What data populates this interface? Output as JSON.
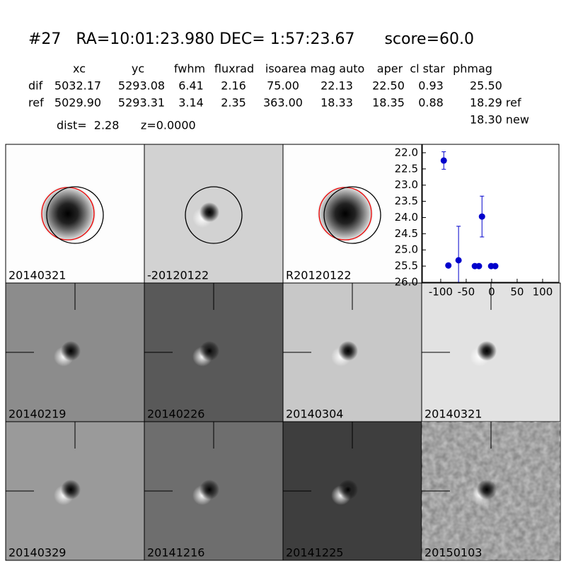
{
  "header": {
    "title": "#27   RA=10:01:23.980 DEC= 1:57:23.67      score=60.0",
    "dist": "dist=  2.28      z=0.0000"
  },
  "table": {
    "columns": [
      "xc",
      "yc",
      "fwhm",
      "fluxrad",
      "isoarea",
      "mag auto",
      "aper",
      "cl star",
      "phmag"
    ],
    "rows": [
      [
        "dif",
        "5032.17",
        "5293.08",
        "6.41",
        "2.16",
        "75.00",
        "22.13",
        "22.50",
        "0.93",
        "25.50"
      ],
      [
        "ref",
        "5029.90",
        "5293.31",
        "3.14",
        "2.35",
        "363.00",
        "18.33",
        "18.35",
        "0.88",
        "18.29 ref"
      ]
    ],
    "extra": "18.30 new"
  },
  "panels": [
    "20140321",
    "-20120122",
    "R20120122",
    "20140219",
    "20140226",
    "20140304",
    "20140321",
    "20140329",
    "20141216",
    "20141225",
    "20150103"
  ],
  "chart_data": {
    "type": "scatter",
    "color": "#0000cc",
    "x": [
      -94,
      -85,
      -65,
      -33,
      -25,
      -1,
      7,
      -19
    ],
    "values": [
      22.24,
      25.48,
      25.32,
      25.5,
      25.5,
      25.5,
      25.5,
      23.97
    ],
    "errors": [
      0.27,
      null,
      1.05,
      null,
      null,
      null,
      null,
      0.63
    ],
    "xlim": [
      -136,
      132
    ],
    "ylim": [
      26.0,
      21.74
    ],
    "inverted_y": true,
    "xticks": [
      -100,
      -50,
      0,
      50,
      100
    ],
    "yticks": [
      {
        "value": 22,
        "label": "22.0"
      },
      22.5,
      {
        "value": 23,
        "label": "23.0"
      },
      23.5,
      {
        "value": 24,
        "label": "24.0"
      },
      24.5,
      {
        "value": 25,
        "label": "25.0"
      },
      25.5,
      {
        "value": 26,
        "label": "26.0"
      }
    ]
  }
}
